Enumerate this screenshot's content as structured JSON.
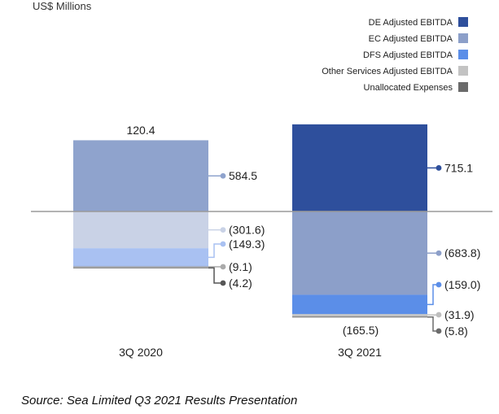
{
  "colors": {
    "de": "#2e4f9c",
    "ec": "#8c9fc9",
    "dfs": "#5b8ee8",
    "other": "#c3c3c3",
    "unalloc": "#6b6b6b",
    "ec_2020": "#8fa3cd",
    "other_2020": "#c9d2e6",
    "dfs_2020": "#a9c1f2",
    "axis": "#9a9a9a",
    "text": "#222222"
  },
  "chart_data": {
    "type": "bar",
    "subtype": "stacked-waterfall",
    "unit_label": "US$ Millions",
    "categories": [
      "3Q 2020",
      "3Q 2021"
    ],
    "series": [
      {
        "name": "DE Adjusted EBITDA",
        "values": [
          null,
          715.1
        ],
        "labels": [
          "",
          "715.1"
        ]
      },
      {
        "name": "EC Adjusted EBITDA",
        "values": [
          584.5,
          -683.8
        ],
        "labels": [
          "584.5",
          "(683.8)"
        ]
      },
      {
        "name": "DFS Adjusted EBITDA",
        "values": [
          -149.3,
          -159.0
        ],
        "labels": [
          "(149.3)",
          "(159.0)"
        ]
      },
      {
        "name": "Other Services Adjusted EBITDA",
        "values": [
          -9.1,
          -31.9
        ],
        "labels": [
          "(9.1)",
          "(31.9)"
        ]
      },
      {
        "name": "Unallocated Expenses",
        "values": [
          -4.2,
          -5.8
        ],
        "labels": [
          "(4.2)",
          "(5.8)"
        ]
      }
    ],
    "extra_labels": {
      "de_2020": {
        "value": -301.6,
        "label": "(301.6)"
      }
    },
    "totals": [
      {
        "category": "3Q 2020",
        "value": 120.4,
        "label": "120.4"
      },
      {
        "category": "3Q 2021",
        "value": -165.5,
        "label": "(165.5)"
      }
    ],
    "legend_position": "top-right",
    "grid": false
  },
  "source": "Source: Sea Limited Q3 2021 Results Presentation"
}
